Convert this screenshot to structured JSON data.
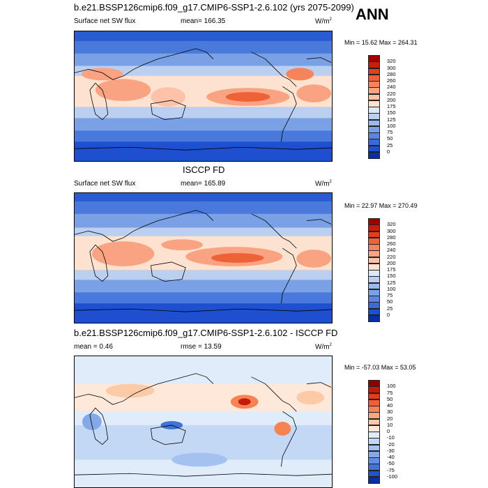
{
  "header": {
    "ann_label": "ANN"
  },
  "panels": [
    {
      "id": "model",
      "title": "b.e21.BSSP126cmip6.f09_g17.CMIP6-SSP1-2.6.102 (yrs 2075-2099)",
      "variable": "Surface net SW flux",
      "mean_text": "mean= 166.35",
      "units_text": "W/m",
      "units_sup": "2",
      "minmax_text": "Min = 15.62 Max = 264.31",
      "colorbar": {
        "labels": [
          "320",
          "300",
          "280",
          "260",
          "240",
          "220",
          "200",
          "175",
          "150",
          "125",
          "100",
          "75",
          "50",
          "25",
          "0"
        ],
        "colors": [
          "#9e0000",
          "#c81e0a",
          "#e0401a",
          "#ee6238",
          "#f5845c",
          "#f9a382",
          "#fcc3a8",
          "#fde2d0",
          "#dde7f7",
          "#bbd0f1",
          "#9bb9ec",
          "#7aa0e6",
          "#5a86df",
          "#3a6ad7",
          "#1e4fcf",
          "#0a2fa5"
        ]
      }
    },
    {
      "id": "obs",
      "title": "ISCCP FD",
      "variable": "Surface net SW flux",
      "mean_text": "mean= 165.89",
      "units_text": "W/m",
      "units_sup": "2",
      "minmax_text": "Min = 22.97 Max = 270.49",
      "colorbar": {
        "labels": [
          "320",
          "300",
          "280",
          "260",
          "240",
          "220",
          "200",
          "175",
          "150",
          "125",
          "100",
          "75",
          "50",
          "25",
          "0"
        ],
        "colors": [
          "#9e0000",
          "#c81e0a",
          "#e0401a",
          "#ee6238",
          "#f5845c",
          "#f9a382",
          "#fcc3a8",
          "#fde2d0",
          "#dde7f7",
          "#bbd0f1",
          "#9bb9ec",
          "#7aa0e6",
          "#5a86df",
          "#3a6ad7",
          "#1e4fcf",
          "#0a2fa5"
        ]
      }
    },
    {
      "id": "diff",
      "title": "b.e21.BSSP126cmip6.f09_g17.CMIP6-SSP1-2.6.102 - ISCCP FD",
      "mean_text": "mean =   0.46",
      "rmse_text": "rmse =   13.59",
      "units_text": "W/m",
      "units_sup": "2",
      "minmax_text": "Min = -57.03 Max =  53.05",
      "colorbar": {
        "labels": [
          "100",
          "75",
          "50",
          "40",
          "30",
          "20",
          "10",
          "0",
          "-10",
          "-20",
          "-30",
          "-40",
          "-50",
          "-75",
          "-100"
        ],
        "colors": [
          "#8e0000",
          "#c41a0a",
          "#e23a1c",
          "#f25c36",
          "#f78354",
          "#fba878",
          "#fdcaa8",
          "#fee8da",
          "#e0ecfa",
          "#c3d8f5",
          "#a4c1ef",
          "#84a8e8",
          "#638ee1",
          "#4271d8",
          "#2253cc",
          "#0c2f9c"
        ]
      }
    }
  ],
  "colors": {
    "deep_blue": "#1e4fcf",
    "mid_blue": "#5a86df",
    "light_blue": "#bbd0f1",
    "pale": "#fde2d0",
    "light_red": "#f9a382",
    "red": "#ee6238",
    "dark_red": "#c81e0a",
    "coast": "#000000"
  }
}
